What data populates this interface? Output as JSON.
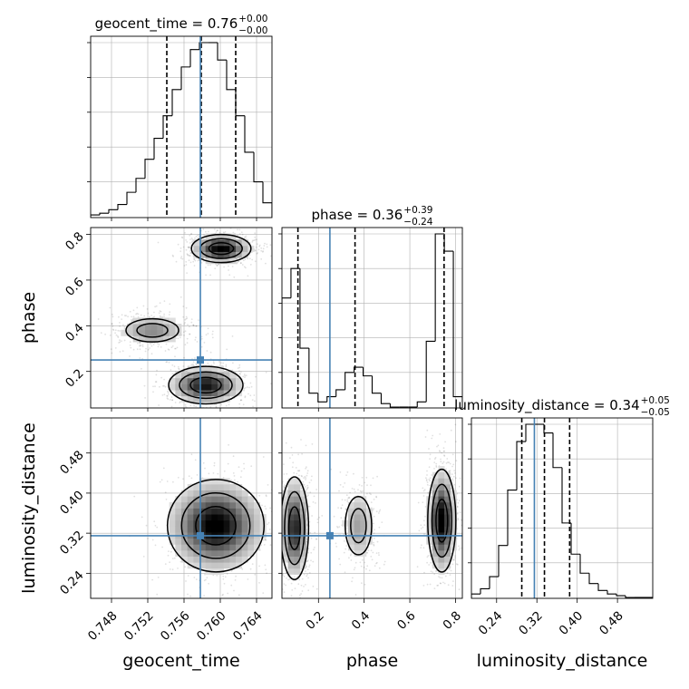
{
  "chart_data": {
    "type": "corner",
    "parameters": [
      "geocent_time",
      "phase",
      "luminosity_distance"
    ],
    "truths": {
      "geocent_time": 0.7578,
      "phase": 0.25,
      "luminosity_distance": 0.315
    },
    "titles": [
      {
        "param": "geocent_time",
        "text": "geocent_time = 0.76",
        "sup": "+0.00",
        "sub": "−0.00",
        "quantiles": [
          0.7541,
          0.7579,
          0.7617
        ]
      },
      {
        "param": "phase",
        "text": "phase = 0.36",
        "sup": "+0.39",
        "sub": "−0.24",
        "quantiles": [
          0.11,
          0.36,
          0.75
        ]
      },
      {
        "param": "luminosity_distance",
        "text": "luminosity_distance = 0.34",
        "sup": "+0.05",
        "sub": "−0.05",
        "quantiles": [
          0.29,
          0.335,
          0.385
        ]
      }
    ],
    "axes": {
      "geocent_time": {
        "range": [
          0.7457,
          0.7657
        ],
        "ticks": [
          0.748,
          0.752,
          0.756,
          0.76,
          0.764
        ],
        "tick_labels": [
          "0.748",
          "0.752",
          "0.756",
          "0.760",
          "0.764"
        ],
        "label": "geocent_time"
      },
      "phase": {
        "range": [
          0.04,
          0.83
        ],
        "ticks": [
          0.2,
          0.4,
          0.6,
          0.8
        ],
        "tick_labels": [
          "0.2",
          "0.4",
          "0.6",
          "0.8"
        ],
        "label": "phase"
      },
      "luminosity_distance": {
        "range": [
          0.19,
          0.55
        ],
        "ticks": [
          0.24,
          0.32,
          0.4,
          0.48
        ],
        "tick_labels": [
          "0.24",
          "0.32",
          "0.40",
          "0.48"
        ],
        "label": "luminosity_distance"
      }
    },
    "histograms": {
      "geocent_time": {
        "bin_edges": [
          0.7457,
          0.7467,
          0.7477,
          0.7487,
          0.7497,
          0.7507,
          0.7517,
          0.7527,
          0.7537,
          0.7547,
          0.7557,
          0.7567,
          0.7577,
          0.7587,
          0.7597,
          0.7607,
          0.7617,
          0.7627,
          0.7637,
          0.7647,
          0.7657
        ],
        "counts": [
          1,
          2,
          4,
          7,
          14,
          22,
          33,
          45,
          58,
          73,
          86,
          96,
          100,
          100,
          90,
          73,
          58,
          37,
          20,
          8
        ]
      },
      "phase": {
        "bin_edges": [
          0.04,
          0.0795,
          0.119,
          0.1585,
          0.198,
          0.2375,
          0.277,
          0.3165,
          0.356,
          0.3955,
          0.435,
          0.4745,
          0.514,
          0.5535,
          0.593,
          0.6325,
          0.672,
          0.7115,
          0.751,
          0.7905,
          0.83
        ],
        "counts": [
          63,
          80,
          34,
          8,
          3,
          6,
          10,
          20,
          23,
          18,
          8,
          2,
          0,
          0,
          0,
          3,
          38,
          100,
          90,
          6
        ]
      },
      "luminosity_distance": {
        "bin_edges": [
          0.19,
          0.208,
          0.226,
          0.244,
          0.262,
          0.28,
          0.298,
          0.316,
          0.334,
          0.352,
          0.37,
          0.388,
          0.406,
          0.424,
          0.442,
          0.46,
          0.478,
          0.496,
          0.514,
          0.532,
          0.55
        ],
        "counts": [
          2,
          5,
          12,
          30,
          62,
          90,
          100,
          100,
          95,
          75,
          43,
          25,
          14,
          8,
          4,
          2,
          1,
          0,
          0,
          0
        ]
      }
    },
    "density_pairs": [
      {
        "x": "geocent_time",
        "y": "phase",
        "blobs": [
          {
            "cx": 0.7601,
            "cy": 0.738,
            "sx": 0.0016,
            "sy": 0.03,
            "weight": 1.0
          },
          {
            "cx": 0.7584,
            "cy": 0.14,
            "sx": 0.002,
            "sy": 0.04,
            "weight": 0.9
          },
          {
            "cx": 0.7525,
            "cy": 0.38,
            "sx": 0.002,
            "sy": 0.035,
            "weight": 0.45
          }
        ]
      },
      {
        "x": "geocent_time",
        "y": "luminosity_distance",
        "blobs": [
          {
            "cx": 0.7595,
            "cy": 0.335,
            "sx": 0.0026,
            "sy": 0.045,
            "weight": 1.0
          }
        ]
      },
      {
        "x": "phase",
        "y": "luminosity_distance",
        "blobs": [
          {
            "cx": 0.095,
            "cy": 0.33,
            "sx": 0.03,
            "sy": 0.05,
            "weight": 0.85
          },
          {
            "cx": 0.375,
            "cy": 0.335,
            "sx": 0.04,
            "sy": 0.04,
            "weight": 0.35
          },
          {
            "cx": 0.74,
            "cy": 0.345,
            "sx": 0.03,
            "sy": 0.05,
            "weight": 1.0
          }
        ]
      }
    ],
    "colors": {
      "truth": "#4682b4",
      "hist": "#000000",
      "grid": "#b0b0b0",
      "quantile": "#000000"
    },
    "grid": true
  }
}
